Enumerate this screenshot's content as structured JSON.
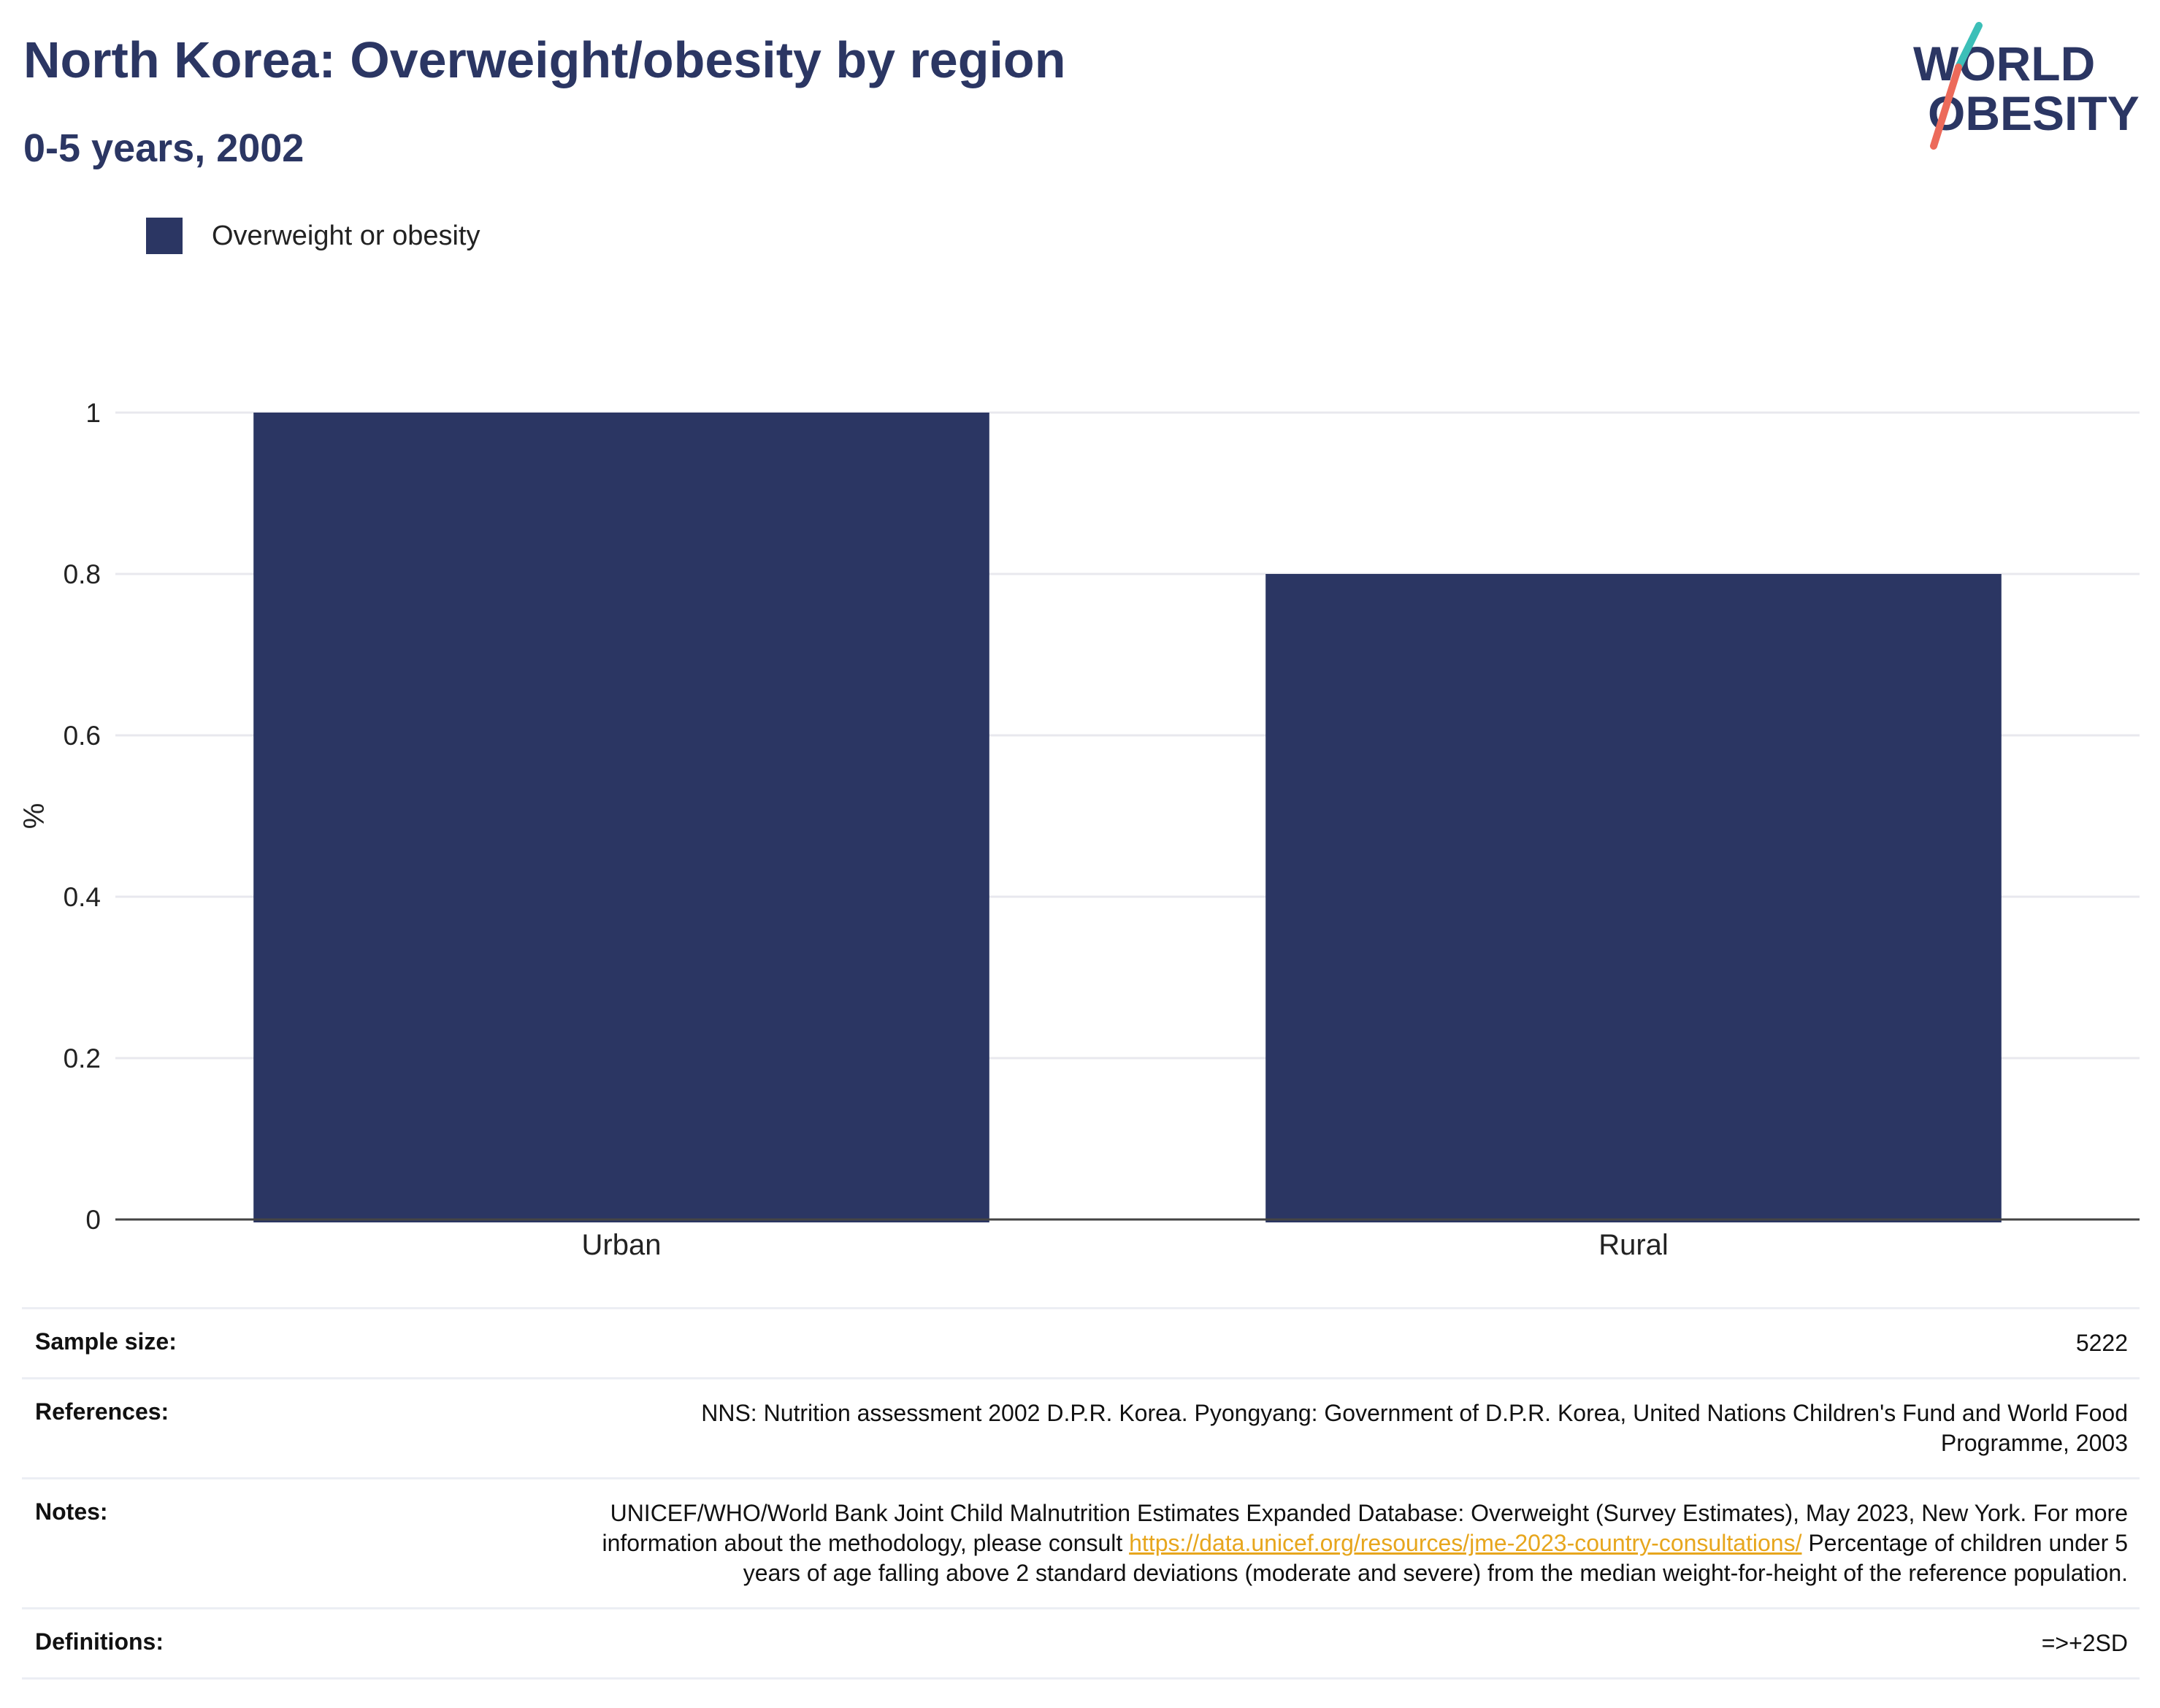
{
  "header": {
    "title": "North Korea: Overweight/obesity by region",
    "subtitle": "0-5 years, 2002"
  },
  "logo": {
    "line1": "WORLD",
    "line2": "OBESITY",
    "colors": {
      "text": "#2b3663",
      "slash_top": "#3cbfb8",
      "slash_bottom": "#ec6a5a"
    }
  },
  "legend": {
    "label": "Overweight or obesity",
    "color": "#2b3663"
  },
  "chart_data": {
    "type": "bar",
    "categories": [
      "Urban",
      "Rural"
    ],
    "series": [
      {
        "name": "Overweight or obesity",
        "values": [
          1.0,
          0.8
        ],
        "color": "#2b3663"
      }
    ],
    "ylabel": "%",
    "xlabel": "",
    "ylim": [
      0,
      1
    ],
    "yticks": [
      "0",
      "0.2",
      "0.4",
      "0.6",
      "0.8",
      "1"
    ],
    "grid": true,
    "legend_position": "top-left"
  },
  "info": {
    "sample_size": {
      "label": "Sample size:",
      "value": "5222"
    },
    "references": {
      "label": "References:",
      "value": "NNS: Nutrition assessment 2002 D.P.R. Korea. Pyongyang: Government of D.P.R. Korea, United Nations Children's Fund and World Food Programme, 2003"
    },
    "notes": {
      "label": "Notes:",
      "text_before": "UNICEF/WHO/World Bank Joint Child Malnutrition Estimates Expanded Database: Overweight (Survey Estimates), May 2023, New York. For more information about the methodology, please consult ",
      "link": "https://data.unicef.org/resources/jme-2023-country-consultations/",
      "text_after": " Percentage of children under 5 years of age falling above 2 standard deviations (moderate and severe) from the median weight-for-height of the reference population."
    },
    "definitions": {
      "label": "Definitions:",
      "value": "=>+2SD"
    }
  }
}
